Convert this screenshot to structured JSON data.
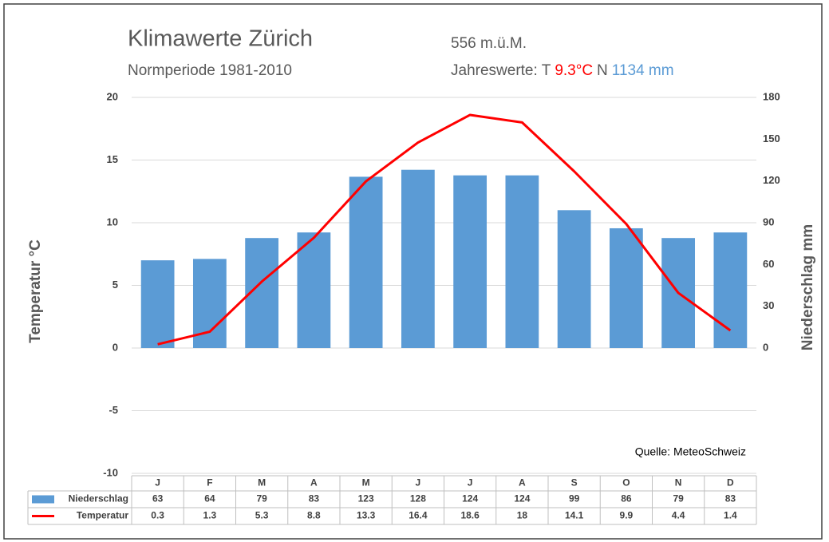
{
  "chart_data": {
    "type": "bar_line",
    "title": "Klimawerte Zürich",
    "subtitle": "Normperiode 1981-2010",
    "elevation": "556 m.ü.M.",
    "annual_label": "Jahreswerte: T",
    "annual_temperature": "9.3°C",
    "annual_precip_label": "N",
    "annual_precipitation": "1134 mm",
    "source": "Quelle: MeteoSchweiz",
    "y_label": "Temperatur °C",
    "y2_label": "Niederschlag mm",
    "categories": [
      "J",
      "F",
      "M",
      "A",
      "M",
      "J",
      "J",
      "A",
      "S",
      "O",
      "N",
      "D"
    ],
    "series": [
      {
        "name": "Niederschlag",
        "type": "bar",
        "axis": "y2",
        "color": "#5b9bd5",
        "values": [
          63,
          64,
          79,
          83,
          123,
          128,
          124,
          124,
          99,
          86,
          79,
          83
        ]
      },
      {
        "name": "Temperatur",
        "type": "line",
        "axis": "y",
        "color": "#ff0000",
        "values": [
          0.3,
          1.3,
          5.3,
          8.8,
          13.3,
          16.4,
          18.6,
          18,
          14.1,
          9.9,
          4.4,
          1.4
        ]
      }
    ],
    "ylim": [
      -10,
      20
    ],
    "yticks": [
      -10,
      -5,
      0,
      5,
      10,
      15,
      20
    ],
    "y2lim": [
      -90,
      180
    ],
    "y2ticks": [
      0,
      30,
      60,
      90,
      120,
      150,
      180
    ],
    "grid": true
  }
}
